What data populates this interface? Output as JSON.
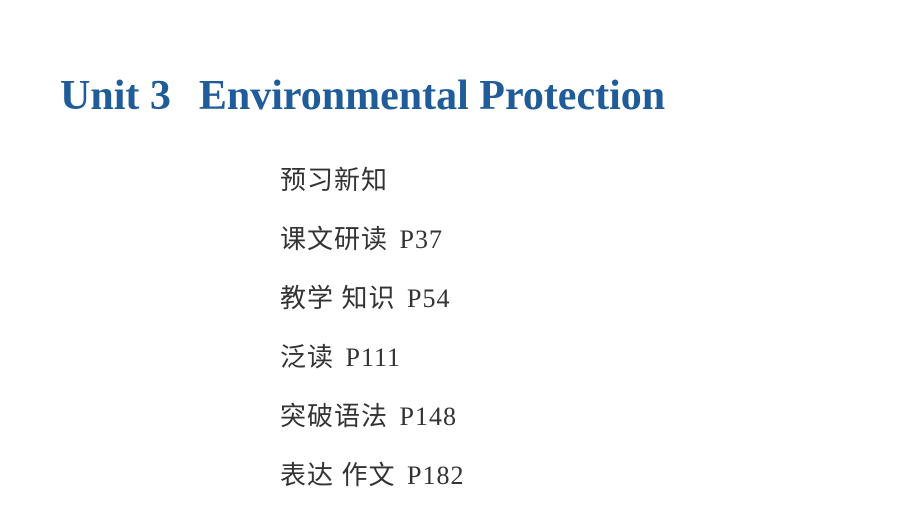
{
  "title": {
    "unit_label": "Unit 3",
    "unit_name": "Environmental Protection",
    "color": "#1f5c99",
    "fontsize": 42
  },
  "toc": {
    "items": [
      {
        "text": "预习新知",
        "page": ""
      },
      {
        "text": "课文研读",
        "page": "P37"
      },
      {
        "text": "教学 知识",
        "page": "P54"
      },
      {
        "text": "泛读",
        "page": "P111"
      },
      {
        "text": "突破语法",
        "page": "P148"
      },
      {
        "text": "表达 作文",
        "page": "P182"
      }
    ],
    "fontsize": 26,
    "color": "#333333"
  },
  "background_color": "#ffffff"
}
